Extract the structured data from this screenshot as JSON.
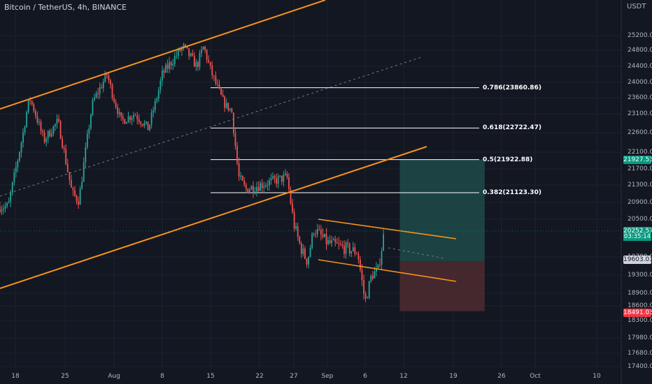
{
  "header": {
    "symbol": "Bitcoin / TetherUS, 4h, BINANCE",
    "currency": "USDT"
  },
  "colors": {
    "background": "#131722",
    "up": "#26a69a",
    "down": "#ef5350",
    "channel": "#f7931a",
    "fib": "#ffffff",
    "target_zone": "#1f4a4a",
    "stop_zone": "#4b2a2f"
  },
  "chart_data": {
    "type": "candlestick",
    "title": "Bitcoin / TetherUS, 4h, BINANCE",
    "ylabel": "USDT",
    "ylim": [
      17200,
      25600
    ],
    "y_ticks": [
      25200,
      24800,
      24400,
      24000,
      23600,
      23100,
      22600,
      22100,
      21700,
      21300,
      20900,
      20500,
      19700,
      19300,
      18900,
      18600,
      18300,
      17980,
      17680,
      17400
    ],
    "x_ticks": [
      "18",
      "25",
      "Aug",
      "8",
      "15",
      "22",
      "27",
      "Sep",
      "6",
      "12",
      "19",
      "26",
      "Oct",
      "10"
    ],
    "grid": true,
    "price_path": [
      {
        "date": "Jul 17",
        "price": 20800
      },
      {
        "date": "Jul 19",
        "price": 22500
      },
      {
        "date": "Jul 20",
        "price": 23600
      },
      {
        "date": "Jul 22",
        "price": 22400
      },
      {
        "date": "Jul 24",
        "price": 22900
      },
      {
        "date": "Jul 26",
        "price": 21100
      },
      {
        "date": "Jul 27",
        "price": 20950
      },
      {
        "date": "Jul 29",
        "price": 23500
      },
      {
        "date": "Jul 31",
        "price": 24200
      },
      {
        "date": "Aug 2",
        "price": 22900
      },
      {
        "date": "Aug 4",
        "price": 23100
      },
      {
        "date": "Aug 6",
        "price": 22700
      },
      {
        "date": "Aug 8",
        "price": 24200
      },
      {
        "date": "Aug 11",
        "price": 24900
      },
      {
        "date": "Aug 13",
        "price": 24400
      },
      {
        "date": "Aug 14",
        "price": 24900
      },
      {
        "date": "Aug 15",
        "price": 24300
      },
      {
        "date": "Aug 17",
        "price": 23400
      },
      {
        "date": "Aug 18",
        "price": 23200
      },
      {
        "date": "Aug 19",
        "price": 21500
      },
      {
        "date": "Aug 20",
        "price": 21200
      },
      {
        "date": "Aug 22",
        "price": 21300
      },
      {
        "date": "Aug 24",
        "price": 21400
      },
      {
        "date": "Aug 26",
        "price": 21500
      },
      {
        "date": "Aug 27",
        "price": 20400
      },
      {
        "date": "Aug 28",
        "price": 19900
      },
      {
        "date": "Aug 29",
        "price": 19600
      },
      {
        "date": "Aug 30",
        "price": 20300
      },
      {
        "date": "Sep 1",
        "price": 20000
      },
      {
        "date": "Sep 3",
        "price": 19900
      },
      {
        "date": "Sep 5",
        "price": 19800
      },
      {
        "date": "Sep 6",
        "price": 18700
      },
      {
        "date": "Sep 7",
        "price": 19300
      },
      {
        "date": "Sep 8",
        "price": 19400
      },
      {
        "date": "Sep 9",
        "price": 20252.57
      }
    ],
    "fibonacci": [
      {
        "label": "0.786(23860.86)",
        "price": 23860.86
      },
      {
        "label": "0.618(22722.47)",
        "price": 22722.47
      },
      {
        "label": "0.5(21922.88)",
        "price": 21922.88
      },
      {
        "label": "0.382(21123.30)",
        "price": 21123.3
      }
    ],
    "position": {
      "target": 21927.53,
      "entry": 19603.01,
      "stop": 18491.03
    },
    "last_price": {
      "value": "20252.57",
      "countdown": "03:35:14"
    },
    "price_labels": {
      "target": "21927.53",
      "current": "20252.57",
      "countdown": "03:35:14",
      "entry": "19603.01",
      "stop": "18491.03"
    }
  }
}
